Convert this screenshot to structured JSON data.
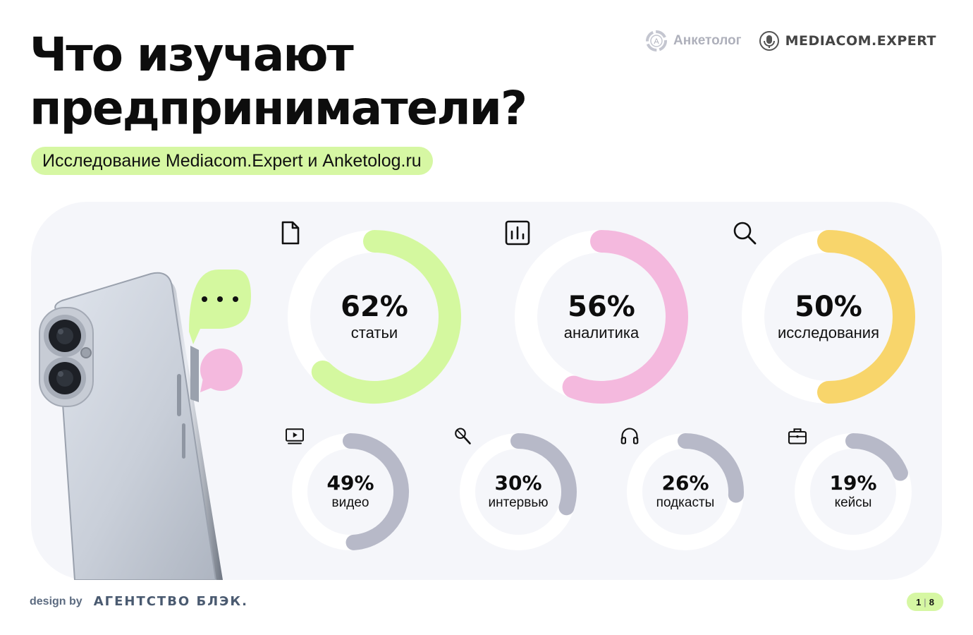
{
  "header": {
    "title_line1": "Что изучают",
    "title_line2": "предприниматели?",
    "subtitle": "Исследование Mediacom.Expert и Anketolog.ru"
  },
  "logos": {
    "anketolog": "Анкетолог",
    "anketolog_mark": "А",
    "mediacom": "MEDIACOM.EXPERT"
  },
  "chart_data": {
    "type": "donut",
    "title": "Что изучают предприниматели?",
    "unit": "%",
    "categories": [
      "статьи",
      "аналитика",
      "исследования",
      "видео",
      "интервью",
      "подкасты",
      "кейсы"
    ],
    "values": [
      62,
      56,
      50,
      49,
      30,
      26,
      19
    ],
    "labels": [
      "62%",
      "56%",
      "50%",
      "49%",
      "30%",
      "26%",
      "19%"
    ],
    "icons": [
      "document-icon",
      "bar-chart-icon",
      "search-icon",
      "video-icon",
      "microphone-icon",
      "headphones-icon",
      "briefcase-icon"
    ],
    "colors": [
      "#d4f89f",
      "#f4b9de",
      "#f8d56b",
      "#b7b9c8",
      "#b7b9c8",
      "#b7b9c8",
      "#b7b9c8"
    ],
    "track_color": "#ffffff"
  },
  "footer": {
    "design_by": "design by",
    "agency": "АГЕНТСТВО БЛЭК.",
    "page_current": "1",
    "page_total": "8"
  },
  "colors": {
    "accent_green": "#d6f7a3",
    "panel_bg": "#f5f6fa",
    "bubble_green": "#d4f89f",
    "bubble_pink": "#f4b9de"
  }
}
